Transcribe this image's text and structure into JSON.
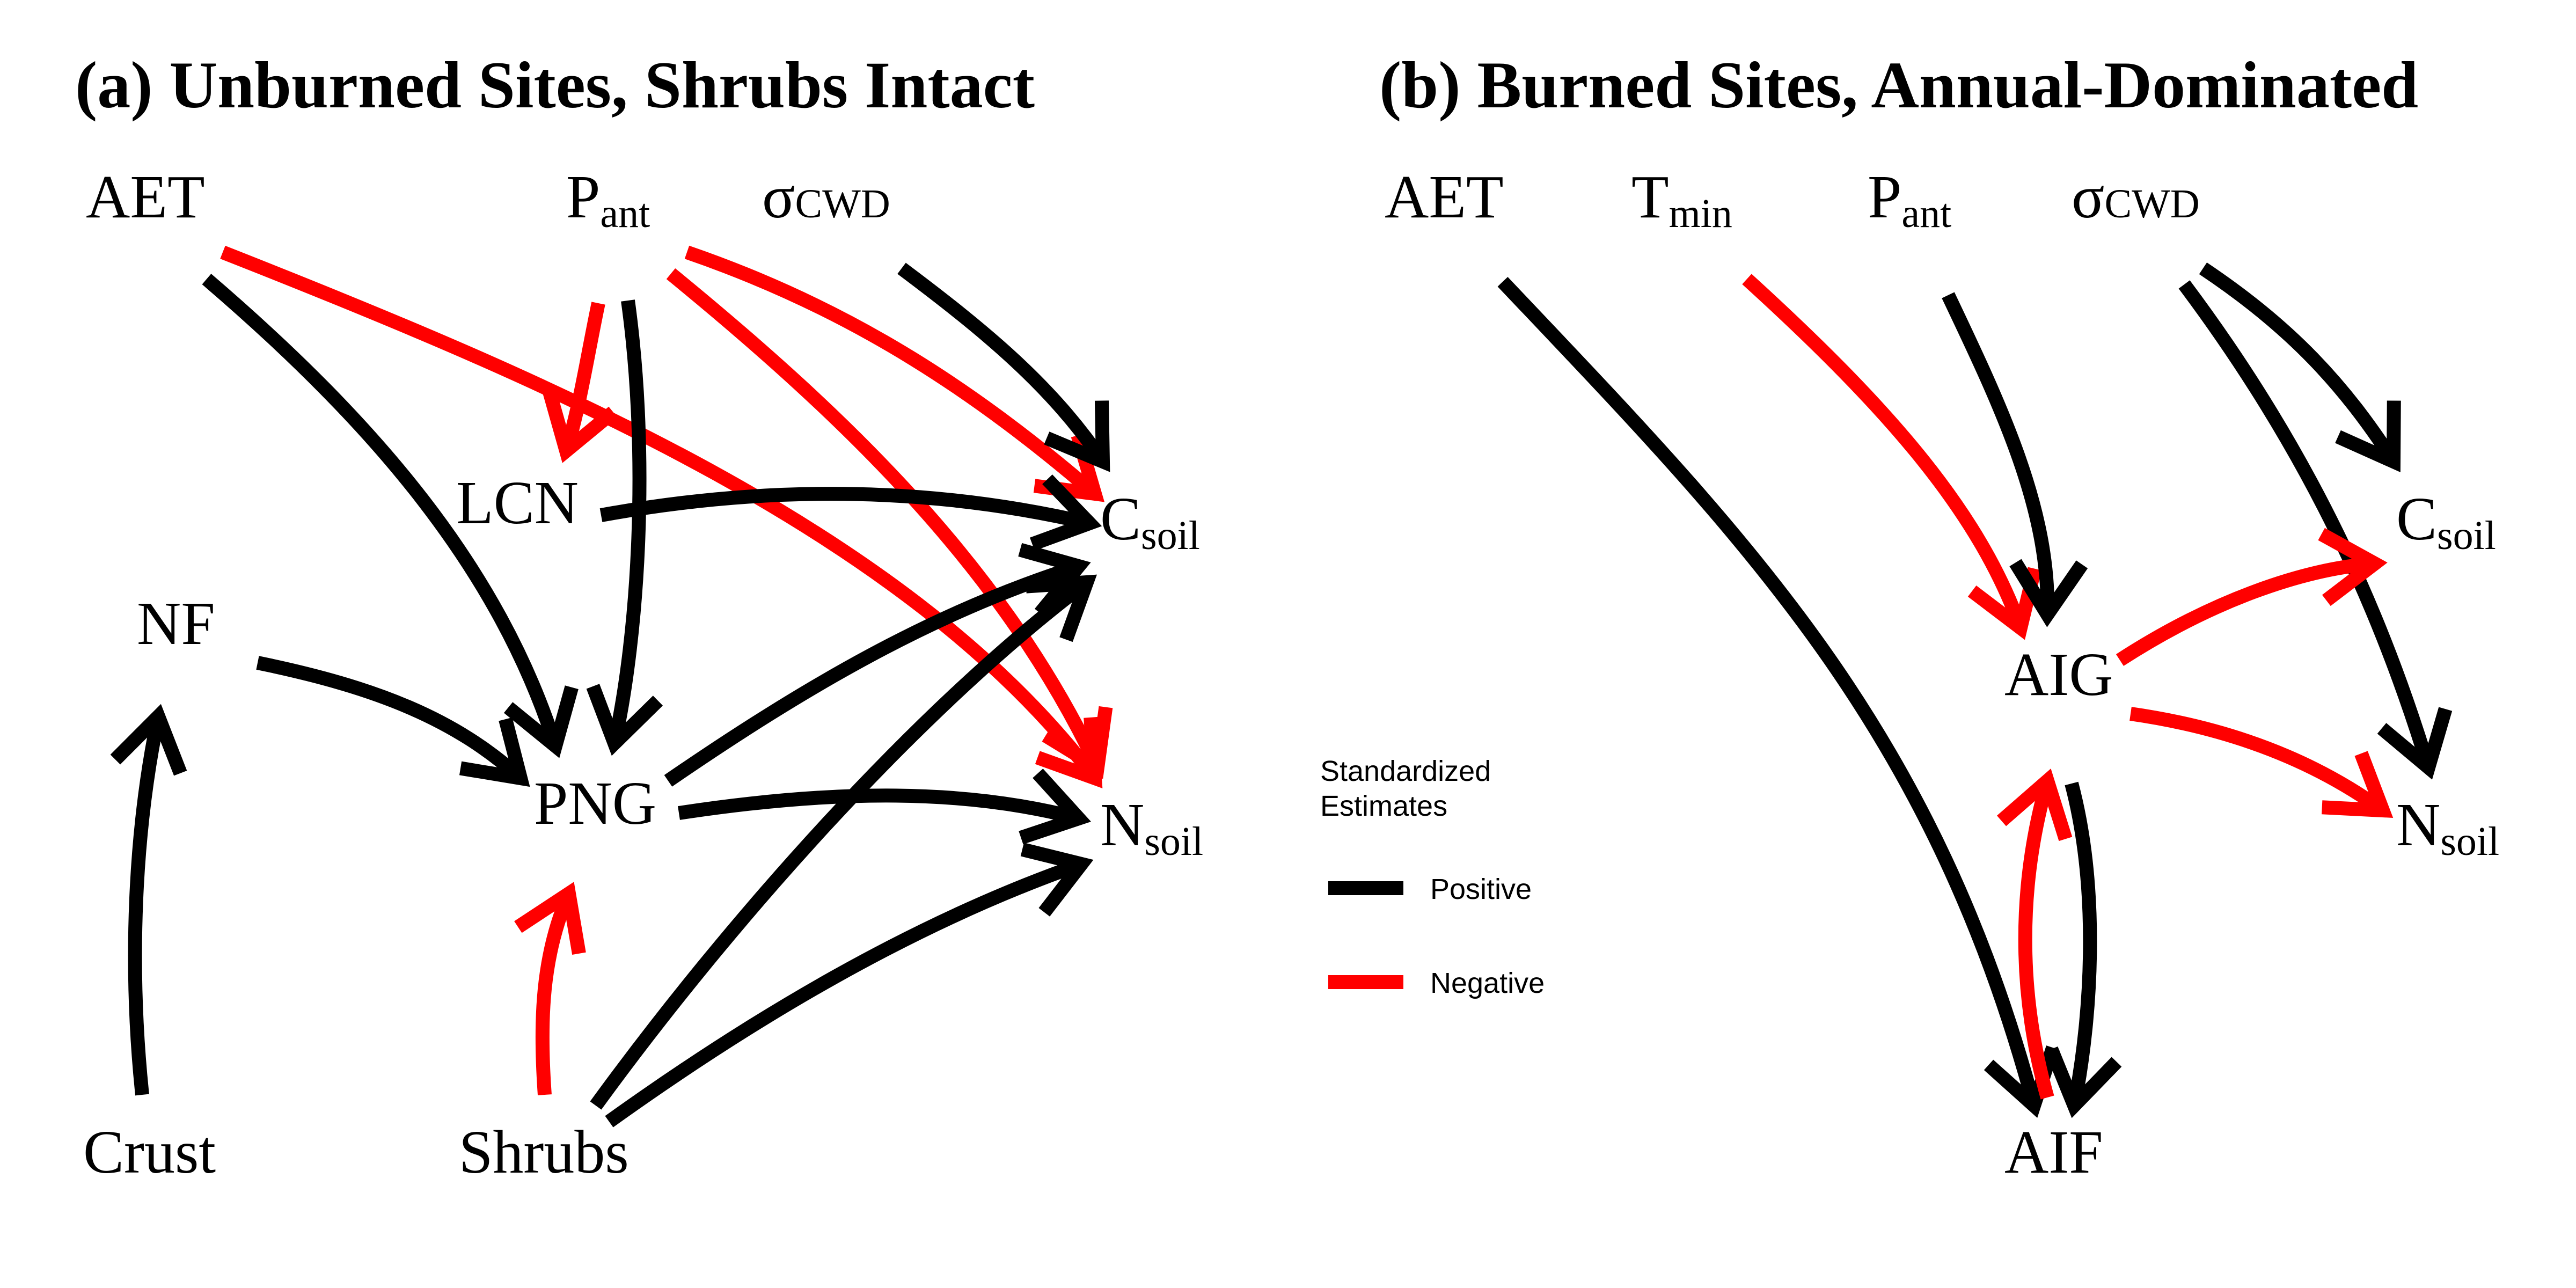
{
  "colors": {
    "positive": "#000000",
    "negative": "#ff0000"
  },
  "panels": [
    {
      "id": "a",
      "title": "(a) Unburned Sites, Shrubs Intact",
      "nodes": [
        {
          "id": "AET",
          "main": "AET",
          "sub": ""
        },
        {
          "id": "Pant",
          "main": "P",
          "sub": "ant"
        },
        {
          "id": "sCWD",
          "main": "σ",
          "sub": "CWD"
        },
        {
          "id": "LCN",
          "main": "LCN",
          "sub": ""
        },
        {
          "id": "NF",
          "main": "NF",
          "sub": ""
        },
        {
          "id": "PNG",
          "main": "PNG",
          "sub": ""
        },
        {
          "id": "Csoil",
          "main": "C",
          "sub": "soil"
        },
        {
          "id": "Nsoil",
          "main": "N",
          "sub": "soil"
        },
        {
          "id": "Crust",
          "main": "Crust",
          "sub": ""
        },
        {
          "id": "Shrubs",
          "main": "Shrubs",
          "sub": ""
        }
      ],
      "edges": [
        {
          "from": "AET",
          "to": "PNG",
          "sign": "positive"
        },
        {
          "from": "AET",
          "to": "Nsoil",
          "sign": "negative"
        },
        {
          "from": "Pant",
          "to": "LCN",
          "sign": "negative"
        },
        {
          "from": "Pant",
          "to": "PNG",
          "sign": "positive"
        },
        {
          "from": "Pant",
          "to": "Csoil",
          "sign": "negative"
        },
        {
          "from": "Pant",
          "to": "Nsoil",
          "sign": "negative"
        },
        {
          "from": "sCWD",
          "to": "Csoil",
          "sign": "positive"
        },
        {
          "from": "LCN",
          "to": "Csoil",
          "sign": "positive"
        },
        {
          "from": "NF",
          "to": "PNG",
          "sign": "positive"
        },
        {
          "from": "Crust",
          "to": "NF",
          "sign": "positive"
        },
        {
          "from": "PNG",
          "to": "Csoil",
          "sign": "positive"
        },
        {
          "from": "PNG",
          "to": "Nsoil",
          "sign": "positive"
        },
        {
          "from": "Shrubs",
          "to": "PNG",
          "sign": "negative"
        },
        {
          "from": "Shrubs",
          "to": "Csoil",
          "sign": "positive"
        },
        {
          "from": "Shrubs",
          "to": "Nsoil",
          "sign": "positive"
        }
      ]
    },
    {
      "id": "b",
      "title": "(b) Burned Sites, Annual-Dominated",
      "nodes": [
        {
          "id": "AET",
          "main": "AET",
          "sub": ""
        },
        {
          "id": "Tmin",
          "main": "T",
          "sub": "min"
        },
        {
          "id": "Pant",
          "main": "P",
          "sub": "ant"
        },
        {
          "id": "sCWD",
          "main": "σ",
          "sub": "CWD"
        },
        {
          "id": "Csoil",
          "main": "C",
          "sub": "soil"
        },
        {
          "id": "AIG",
          "main": "AIG",
          "sub": ""
        },
        {
          "id": "Nsoil",
          "main": "N",
          "sub": "soil"
        },
        {
          "id": "AIF",
          "main": "AIF",
          "sub": ""
        }
      ],
      "edges": [
        {
          "from": "AET",
          "to": "AIF",
          "sign": "positive"
        },
        {
          "from": "Tmin",
          "to": "AIG",
          "sign": "negative"
        },
        {
          "from": "Pant",
          "to": "AIG",
          "sign": "positive"
        },
        {
          "from": "sCWD",
          "to": "Csoil",
          "sign": "positive"
        },
        {
          "from": "sCWD",
          "to": "Nsoil",
          "sign": "positive"
        },
        {
          "from": "AIG",
          "to": "Csoil",
          "sign": "negative"
        },
        {
          "from": "AIG",
          "to": "Nsoil",
          "sign": "negative"
        },
        {
          "from": "AIG",
          "to": "AIF",
          "sign": "positive"
        },
        {
          "from": "AIF",
          "to": "AIG",
          "sign": "negative"
        }
      ]
    }
  ],
  "legend": {
    "title_line1": "Standardized",
    "title_line2": "Estimates",
    "items": [
      {
        "label": "Positive",
        "sign": "positive"
      },
      {
        "label": "Negative",
        "sign": "negative"
      }
    ]
  }
}
